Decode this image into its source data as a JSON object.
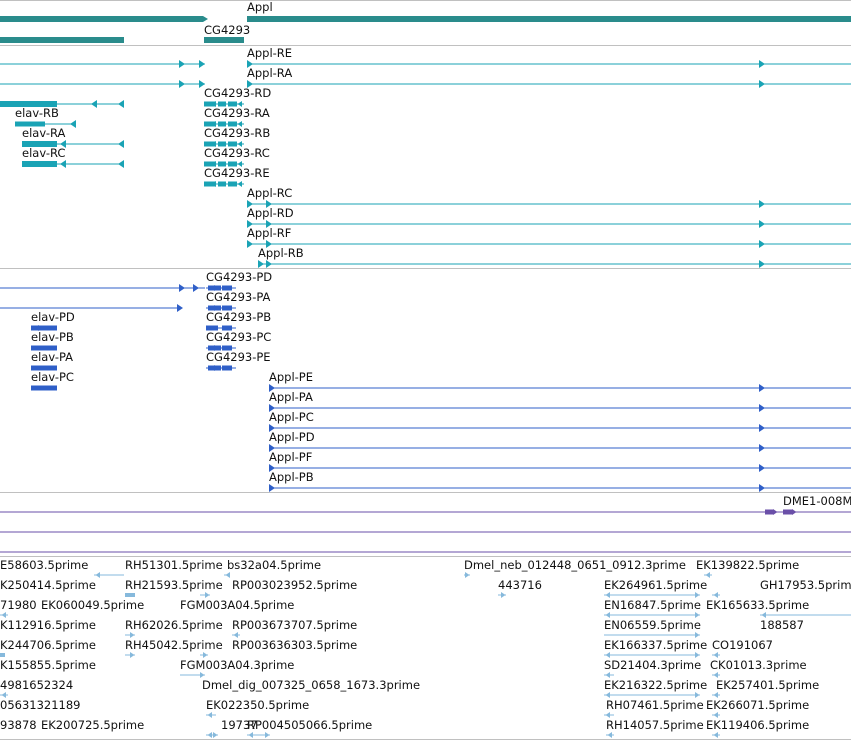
{
  "colors": {
    "gene": "#2a8c8c",
    "mrna": "#1aa3b5",
    "protein": "#2f5fc8",
    "purple": "#6a4fa8",
    "est": "#86b9dc",
    "separator": "#c0c0c0"
  },
  "tracks": {
    "gene": {
      "labels": [
        "Appl",
        "CG4293"
      ]
    },
    "mrna": {
      "labels": [
        "Appl-RE",
        "Appl-RA",
        "CG4293-RD",
        "elav-RB",
        "CG4293-RA",
        "elav-RA",
        "CG4293-RB",
        "elav-RC",
        "CG4293-RC",
        "CG4293-RE",
        "Appl-RC",
        "Appl-RD",
        "Appl-RF",
        "Appl-RB"
      ]
    },
    "protein": {
      "labels": [
        "CG4293-PD",
        "CG4293-PA",
        "elav-PD",
        "CG4293-PB",
        "elav-PB",
        "CG4293-PC",
        "elav-PA",
        "CG4293-PE",
        "elav-PC",
        "Appl-PE",
        "Appl-PA",
        "Appl-PC",
        "Appl-PD",
        "Appl-PF",
        "Appl-PB"
      ]
    },
    "other": {
      "labels": [
        "DME1-008M"
      ]
    },
    "est": {
      "labels": [
        "E58603.5prime",
        "RH51301.5prime",
        "bs32a04.5prime",
        "Dmel_neb_012448_0651_0912.3prime",
        "EK139822.5prime",
        "K250414.5prime",
        "RH21593.5prime",
        "RP003023952.5prime",
        "443716",
        "EK264961.5prime",
        "GH17953.5prime",
        "71980",
        "EK060049.5prime",
        "FGM003A04.5prime",
        "EN16847.5prime",
        "EK165633.5prime",
        "K112916.5prime",
        "RH62026.5prime",
        "RP003673707.5prime",
        "EN06559.5prime",
        "188587",
        "K244706.5prime",
        "RH45042.5prime",
        "RP003636303.5prime",
        "EK166337.5prime",
        "CO191067",
        "K155855.5prime",
        "FGM003A04.3prime",
        "SD21404.3prime",
        "CK01013.3prime",
        "4981652324",
        "Dmel_dig_007325_0658_1673.3prime",
        "EK216322.5prime",
        "EK257401.5prime",
        "05631321189",
        "EK022350.5prime",
        "RH07461.5prime",
        "EK266071.5prime",
        "93878",
        "EK200725.5prime",
        "19737",
        "RP004505066.5prime",
        "RH14057.5prime",
        "EK119406.5prime"
      ]
    }
  }
}
